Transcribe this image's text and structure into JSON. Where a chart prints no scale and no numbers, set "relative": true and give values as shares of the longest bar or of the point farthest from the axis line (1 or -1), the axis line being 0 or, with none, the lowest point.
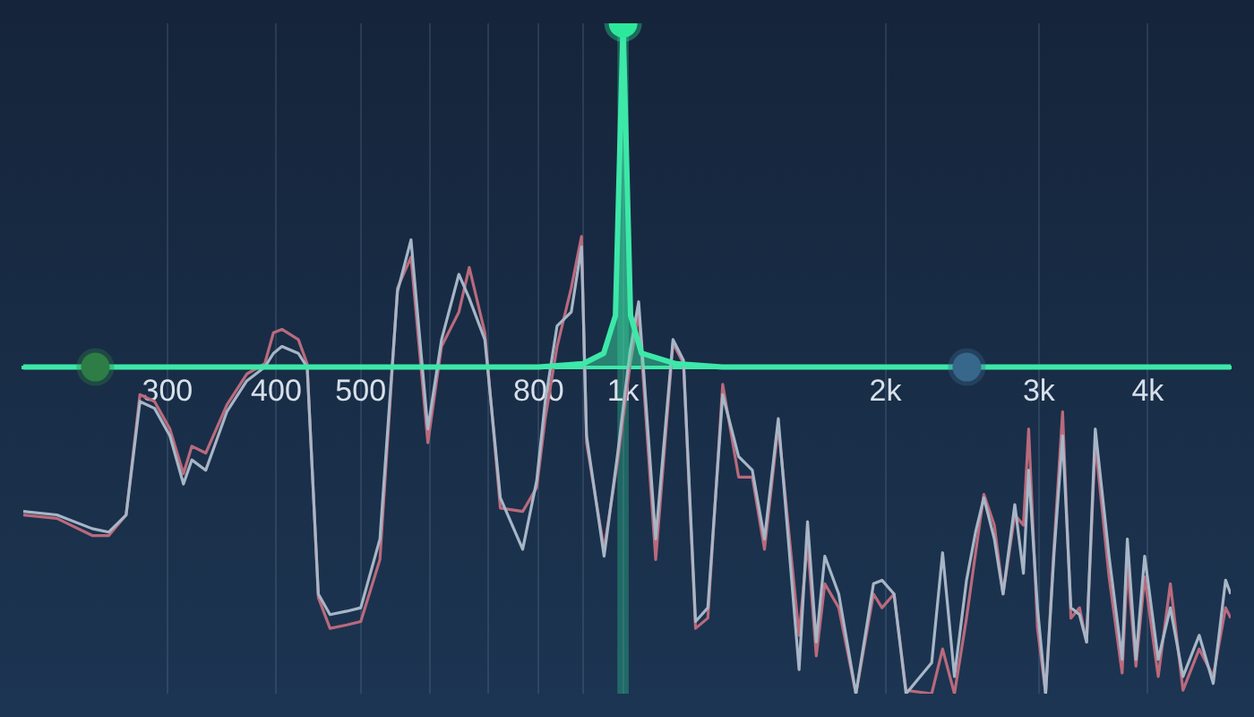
{
  "chart_data": {
    "type": "line",
    "relative": true,
    "log": "x",
    "grid": "x",
    "legend": false,
    "marker": "none",
    "line_style": "solid",
    "xlim": [
      205,
      4980
    ],
    "xticks": [
      300,
      400,
      500,
      {
        "value": 600,
        "label": null
      },
      {
        "value": 700,
        "label": null
      },
      800,
      {
        "value": 900,
        "label": null
      },
      {
        "value": 1000,
        "label": "1k"
      },
      {
        "value": 2000,
        "label": "2k"
      },
      {
        "value": 3000,
        "label": "3k"
      },
      {
        "value": 4000,
        "label": "4k"
      }
    ],
    "x": [
      205,
      224,
      246,
      257,
      269,
      279,
      290,
      302,
      313,
      320,
      332,
      351,
      370,
      388,
      397,
      406,
      424,
      434,
      447,
      461,
      482,
      500,
      526,
      551,
      571,
      597,
      619,
      648,
      666,
      694,
      723,
      767,
      796,
      814,
      840,
      872,
      896,
      908,
      951,
      986,
      1019,
      1042,
      1090,
      1141,
      1173,
      1211,
      1251,
      1301,
      1357,
      1407,
      1453,
      1507,
      1592,
      1628,
      1666,
      1704,
      1768,
      1850,
      1938,
      1982,
      2046,
      2112,
      2260,
      2326,
      2400,
      2478,
      2538,
      2594,
      2667,
      2729,
      2815,
      2880,
      2920,
      2989,
      3054,
      3121,
      3194,
      3265,
      3340,
      3403,
      3482,
      3611,
      3738,
      3790,
      3877,
      3967,
      4112,
      4246,
      4390,
      4582,
      4755,
      4913,
      4980
    ],
    "bands": [
      {
        "axis": "x",
        "from": 985,
        "to": 1015,
        "color": "#2de89a"
      }
    ],
    "series": [
      {
        "color": "#b96a7c",
        "values": [
          -0.43,
          -0.44,
          -0.49,
          -0.49,
          -0.43,
          -0.08,
          -0.1,
          -0.18,
          -0.31,
          -0.23,
          -0.25,
          -0.11,
          -0.02,
          0.01,
          0.1,
          0.11,
          0.08,
          0.01,
          -0.67,
          -0.76,
          -0.75,
          -0.74,
          -0.56,
          0.23,
          0.32,
          -0.22,
          0.06,
          0.16,
          0.29,
          0.1,
          -0.41,
          -0.42,
          -0.35,
          -0.15,
          0.06,
          0.23,
          0.38,
          -0.22,
          -0.53,
          -0.27,
          0.01,
          0.16,
          -0.56,
          0.07,
          0.01,
          -0.76,
          -0.73,
          -0.05,
          -0.32,
          -0.32,
          -0.53,
          -0.17,
          -0.78,
          -0.51,
          -0.84,
          -0.63,
          -0.7,
          -0.95,
          -0.66,
          -0.7,
          -0.66,
          -0.94,
          -0.95,
          -0.82,
          -0.95,
          -0.73,
          -0.54,
          -0.37,
          -0.46,
          -0.66,
          -0.43,
          -0.46,
          -0.18,
          -0.76,
          -0.95,
          -0.53,
          -0.13,
          -0.73,
          -0.7,
          -0.8,
          -0.22,
          -0.61,
          -0.89,
          -0.58,
          -0.87,
          -0.61,
          -0.9,
          -0.63,
          -0.94,
          -0.82,
          -0.9,
          -0.7,
          -0.73
        ]
      },
      {
        "color": "#a7b6c6",
        "values": [
          -0.42,
          -0.43,
          -0.47,
          -0.48,
          -0.43,
          -0.1,
          -0.12,
          -0.2,
          -0.34,
          -0.27,
          -0.3,
          -0.13,
          -0.04,
          0.0,
          0.04,
          0.06,
          0.04,
          0.0,
          -0.66,
          -0.72,
          -0.71,
          -0.7,
          -0.5,
          0.22,
          0.37,
          -0.18,
          0.08,
          0.27,
          0.2,
          0.08,
          -0.38,
          -0.53,
          -0.33,
          -0.1,
          0.12,
          0.16,
          0.35,
          -0.2,
          -0.55,
          -0.25,
          0.05,
          0.19,
          -0.5,
          0.08,
          0.02,
          -0.74,
          -0.7,
          -0.08,
          -0.26,
          -0.3,
          -0.5,
          -0.15,
          -0.88,
          -0.45,
          -0.8,
          -0.55,
          -0.66,
          -0.95,
          -0.63,
          -0.62,
          -0.66,
          -0.95,
          -0.86,
          -0.54,
          -0.9,
          -0.62,
          -0.48,
          -0.38,
          -0.5,
          -0.66,
          -0.4,
          -0.6,
          -0.3,
          -0.7,
          -0.95,
          -0.55,
          -0.2,
          -0.7,
          -0.72,
          -0.8,
          -0.18,
          -0.55,
          -0.85,
          -0.5,
          -0.85,
          -0.55,
          -0.85,
          -0.7,
          -0.9,
          -0.78,
          -0.92,
          -0.62,
          -0.66
        ]
      },
      {
        "type": "area",
        "color": "#3de8a8",
        "x": [
          205,
          800,
          900,
          950,
          980,
          1000,
          1020,
          1050,
          1150,
          1300,
          4980
        ],
        "values": [
          0,
          0,
          0.01,
          0.04,
          0.15,
          1,
          0.15,
          0.04,
          0.01,
          0,
          0
        ]
      },
      {
        "type": "scatter",
        "marker": "circle",
        "x": [
          248,
          1000,
          2480
        ],
        "colors": [
          "#2e7d46",
          "#2de89a",
          "#38678c"
        ],
        "values": [
          0,
          1,
          0
        ]
      }
    ]
  }
}
